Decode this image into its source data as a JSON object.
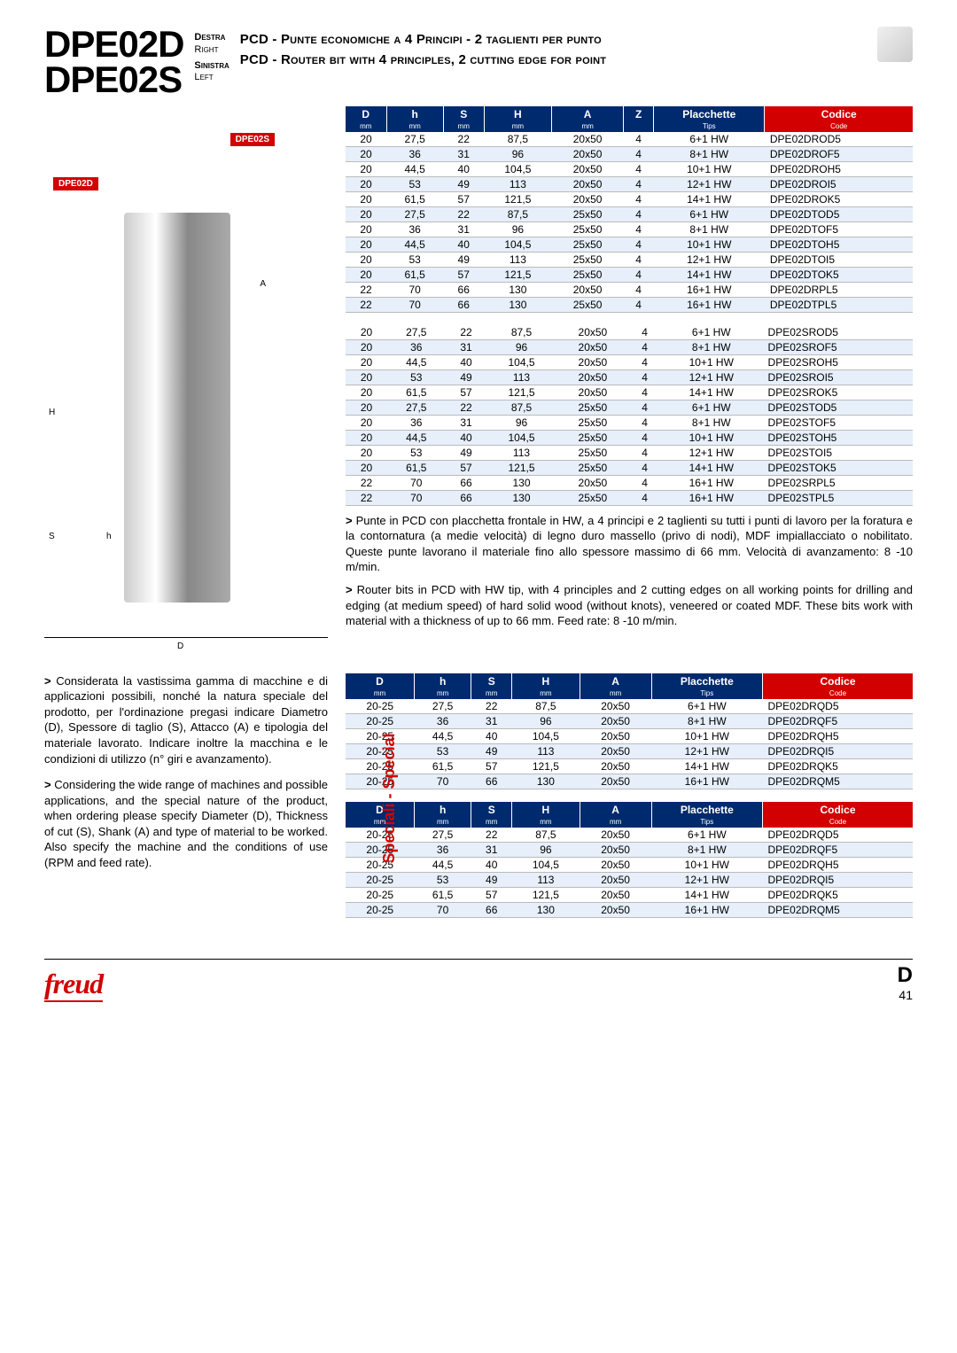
{
  "header": {
    "model1": "DPE02D",
    "model2": "DPE02S",
    "dir_it1": "Destra",
    "dir_en1": "Right",
    "dir_it2": "Sinistra",
    "dir_en2": "Left",
    "title_it": "PCD - Punte economiche a 4 Principi - 2 taglienti per punto",
    "title_en": "PCD - Router bit with 4 principles, 2 cutting edge for point",
    "badge1": "DPE02S",
    "badge2": "DPE02D"
  },
  "cols_main": [
    "D",
    "h",
    "S",
    "H",
    "A",
    "Z",
    "Placchette",
    "Codice"
  ],
  "subcols_main": [
    "mm",
    "mm",
    "mm",
    "mm",
    "mm",
    "",
    "Tips",
    "Code"
  ],
  "cols_spec": [
    "D",
    "h",
    "S",
    "H",
    "A",
    "Placchette",
    "Codice"
  ],
  "subcols_spec": [
    "mm",
    "mm",
    "mm",
    "mm",
    "mm",
    "Tips",
    "Code"
  ],
  "table1": [
    [
      "20",
      "27,5",
      "22",
      "87,5",
      "20x50",
      "4",
      "6+1 HW",
      "DPE02DROD5"
    ],
    [
      "20",
      "36",
      "31",
      "96",
      "20x50",
      "4",
      "8+1 HW",
      "DPE02DROF5"
    ],
    [
      "20",
      "44,5",
      "40",
      "104,5",
      "20x50",
      "4",
      "10+1 HW",
      "DPE02DROH5"
    ],
    [
      "20",
      "53",
      "49",
      "113",
      "20x50",
      "4",
      "12+1 HW",
      "DPE02DROI5"
    ],
    [
      "20",
      "61,5",
      "57",
      "121,5",
      "20x50",
      "4",
      "14+1 HW",
      "DPE02DROK5"
    ],
    [
      "20",
      "27,5",
      "22",
      "87,5",
      "25x50",
      "4",
      "6+1 HW",
      "DPE02DTOD5"
    ],
    [
      "20",
      "36",
      "31",
      "96",
      "25x50",
      "4",
      "8+1 HW",
      "DPE02DTOF5"
    ],
    [
      "20",
      "44,5",
      "40",
      "104,5",
      "25x50",
      "4",
      "10+1 HW",
      "DPE02DTOH5"
    ],
    [
      "20",
      "53",
      "49",
      "113",
      "25x50",
      "4",
      "12+1 HW",
      "DPE02DTOI5"
    ],
    [
      "20",
      "61,5",
      "57",
      "121,5",
      "25x50",
      "4",
      "14+1 HW",
      "DPE02DTOK5"
    ],
    [
      "22",
      "70",
      "66",
      "130",
      "20x50",
      "4",
      "16+1 HW",
      "DPE02DRPL5"
    ],
    [
      "22",
      "70",
      "66",
      "130",
      "25x50",
      "4",
      "16+1 HW",
      "DPE02DTPL5"
    ]
  ],
  "table2": [
    [
      "20",
      "27,5",
      "22",
      "87,5",
      "20x50",
      "4",
      "6+1 HW",
      "DPE02SROD5"
    ],
    [
      "20",
      "36",
      "31",
      "96",
      "20x50",
      "4",
      "8+1 HW",
      "DPE02SROF5"
    ],
    [
      "20",
      "44,5",
      "40",
      "104,5",
      "20x50",
      "4",
      "10+1 HW",
      "DPE02SROH5"
    ],
    [
      "20",
      "53",
      "49",
      "113",
      "20x50",
      "4",
      "12+1 HW",
      "DPE02SROI5"
    ],
    [
      "20",
      "61,5",
      "57",
      "121,5",
      "20x50",
      "4",
      "14+1 HW",
      "DPE02SROK5"
    ],
    [
      "20",
      "27,5",
      "22",
      "87,5",
      "25x50",
      "4",
      "6+1 HW",
      "DPE02STOD5"
    ],
    [
      "20",
      "36",
      "31",
      "96",
      "25x50",
      "4",
      "8+1 HW",
      "DPE02STOF5"
    ],
    [
      "20",
      "44,5",
      "40",
      "104,5",
      "25x50",
      "4",
      "10+1 HW",
      "DPE02STOH5"
    ],
    [
      "20",
      "53",
      "49",
      "113",
      "25x50",
      "4",
      "12+1 HW",
      "DPE02STOI5"
    ],
    [
      "20",
      "61,5",
      "57",
      "121,5",
      "25x50",
      "4",
      "14+1 HW",
      "DPE02STOK5"
    ],
    [
      "22",
      "70",
      "66",
      "130",
      "20x50",
      "4",
      "16+1 HW",
      "DPE02SRPL5"
    ],
    [
      "22",
      "70",
      "66",
      "130",
      "25x50",
      "4",
      "16+1 HW",
      "DPE02STPL5"
    ]
  ],
  "desc_it": "Punte in PCD con placchetta frontale in HW, a 4 principi e 2 taglienti su tutti i punti di lavoro per la foratura e la contornatura (a medie velocità) di legno duro massello (privo di nodi), MDF impiallacciato o nobilitato. Queste punte lavorano il materiale fino allo spessore massimo di 66 mm. Velocità di avanzamento: 8 -10 m/min.",
  "desc_en": "Router bits in PCD with HW tip, with 4 principles and 2 cutting edges on all working points for drilling and edging (at medium speed) of hard solid wood (without knots), veneered or coated MDF. These bits work with material with a thickness of up to 66 mm. Feed rate: 8 -10 m/min.",
  "info_it": "Considerata la vastissima gamma di macchine e di applicazioni possibili, nonché la natura speciale del prodotto, per l'ordinazione pregasi indicare Diametro (D), Spessore di taglio (S), Attacco (A) e tipologia del materiale lavorato. Indicare inoltre la macchina e le condizioni di utilizzo (n° giri e avanzamento).",
  "info_en": "Considering the wide range of machines and possible applications, and the special nature of the product, when ordering please specify Diameter (D), Thickness of cut (S), Shank (A) and type of material to be worked. Also specify the machine and the conditions of use (RPM and feed rate).",
  "table3": [
    [
      "20-25",
      "27,5",
      "22",
      "87,5",
      "20x50",
      "6+1 HW",
      "DPE02DRQD5"
    ],
    [
      "20-25",
      "36",
      "31",
      "96",
      "20x50",
      "8+1 HW",
      "DPE02DRQF5"
    ],
    [
      "20-25",
      "44,5",
      "40",
      "104,5",
      "20x50",
      "10+1 HW",
      "DPE02DRQH5"
    ],
    [
      "20-25",
      "53",
      "49",
      "113",
      "20x50",
      "12+1 HW",
      "DPE02DRQI5"
    ],
    [
      "20-25",
      "61,5",
      "57",
      "121,5",
      "20x50",
      "14+1 HW",
      "DPE02DRQK5"
    ],
    [
      "20-25",
      "70",
      "66",
      "130",
      "20x50",
      "16+1 HW",
      "DPE02DRQM5"
    ]
  ],
  "table4": [
    [
      "20-25",
      "27,5",
      "22",
      "87,5",
      "20x50",
      "6+1 HW",
      "DPE02DRQD5"
    ],
    [
      "20-25",
      "36",
      "31",
      "96",
      "20x50",
      "8+1 HW",
      "DPE02DRQF5"
    ],
    [
      "20-25",
      "44,5",
      "40",
      "104,5",
      "20x50",
      "10+1 HW",
      "DPE02DRQH5"
    ],
    [
      "20-25",
      "53",
      "49",
      "113",
      "20x50",
      "12+1 HW",
      "DPE02DRQI5"
    ],
    [
      "20-25",
      "61,5",
      "57",
      "121,5",
      "20x50",
      "14+1 HW",
      "DPE02DRQK5"
    ],
    [
      "20-25",
      "70",
      "66",
      "130",
      "20x50",
      "16+1 HW",
      "DPE02DRQM5"
    ]
  ],
  "speciali": "Speciali - Special",
  "footer": {
    "logo": "freud",
    "section": "D",
    "page": "41"
  }
}
